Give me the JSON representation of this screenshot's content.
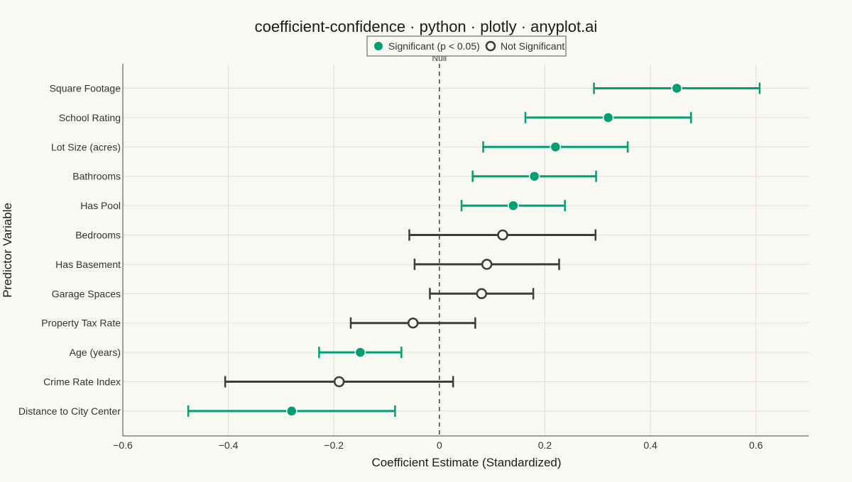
{
  "chart_data": {
    "type": "scatter",
    "title": "coefficient-confidence · python · plotly · anyplot.ai",
    "xlabel": "Coefficient Estimate (Standardized)",
    "ylabel": "Predictor Variable",
    "xlim": [
      -0.6,
      0.7
    ],
    "x_ticks": [
      -0.6,
      -0.4,
      -0.2,
      0,
      0.2,
      0.4,
      0.6
    ],
    "x_tick_labels": [
      "−0.6",
      "−0.4",
      "−0.2",
      "0",
      "0.2",
      "0.4",
      "0.6"
    ],
    "reference_line": {
      "x": 0,
      "label": "Null",
      "style": "dashed"
    },
    "grid": true,
    "legend": {
      "placement": "top-center",
      "entries": [
        {
          "name": "Significant (p < 0.05)",
          "marker": "filled",
          "color": "#009E73"
        },
        {
          "name": "Not Significant",
          "marker": "open",
          "color": "#3C3C3C"
        }
      ]
    },
    "categories": [
      "Square Footage",
      "School Rating",
      "Lot Size (acres)",
      "Bathrooms",
      "Has Pool",
      "Bedrooms",
      "Has Basement",
      "Garage Spaces",
      "Property Tax Rate",
      "Age (years)",
      "Crime Rate Index",
      "Distance to City Center"
    ],
    "series": [
      {
        "name": "Significant (p < 0.05)",
        "color": "#009E73",
        "points": [
          {
            "category": "Square Footage",
            "estimate": 0.45,
            "ci_low": 0.293,
            "ci_high": 0.607
          },
          {
            "category": "School Rating",
            "estimate": 0.32,
            "ci_low": 0.163,
            "ci_high": 0.477
          },
          {
            "category": "Lot Size (acres)",
            "estimate": 0.22,
            "ci_low": 0.083,
            "ci_high": 0.357
          },
          {
            "category": "Bathrooms",
            "estimate": 0.18,
            "ci_low": 0.063,
            "ci_high": 0.297
          },
          {
            "category": "Has Pool",
            "estimate": 0.14,
            "ci_low": 0.042,
            "ci_high": 0.238
          },
          {
            "category": "Age (years)",
            "estimate": -0.15,
            "ci_low": -0.228,
            "ci_high": -0.072
          },
          {
            "category": "Distance to City Center",
            "estimate": -0.28,
            "ci_low": -0.476,
            "ci_high": -0.084
          }
        ]
      },
      {
        "name": "Not Significant",
        "color": "#3C3C3C",
        "points": [
          {
            "category": "Bedrooms",
            "estimate": 0.12,
            "ci_low": -0.057,
            "ci_high": 0.296
          },
          {
            "category": "Has Basement",
            "estimate": 0.09,
            "ci_low": -0.047,
            "ci_high": 0.227
          },
          {
            "category": "Garage Spaces",
            "estimate": 0.08,
            "ci_low": -0.018,
            "ci_high": 0.178
          },
          {
            "category": "Property Tax Rate",
            "estimate": -0.05,
            "ci_low": -0.168,
            "ci_high": 0.068
          },
          {
            "category": "Crime Rate Index",
            "estimate": -0.19,
            "ci_low": -0.406,
            "ci_high": 0.026
          }
        ]
      }
    ]
  }
}
